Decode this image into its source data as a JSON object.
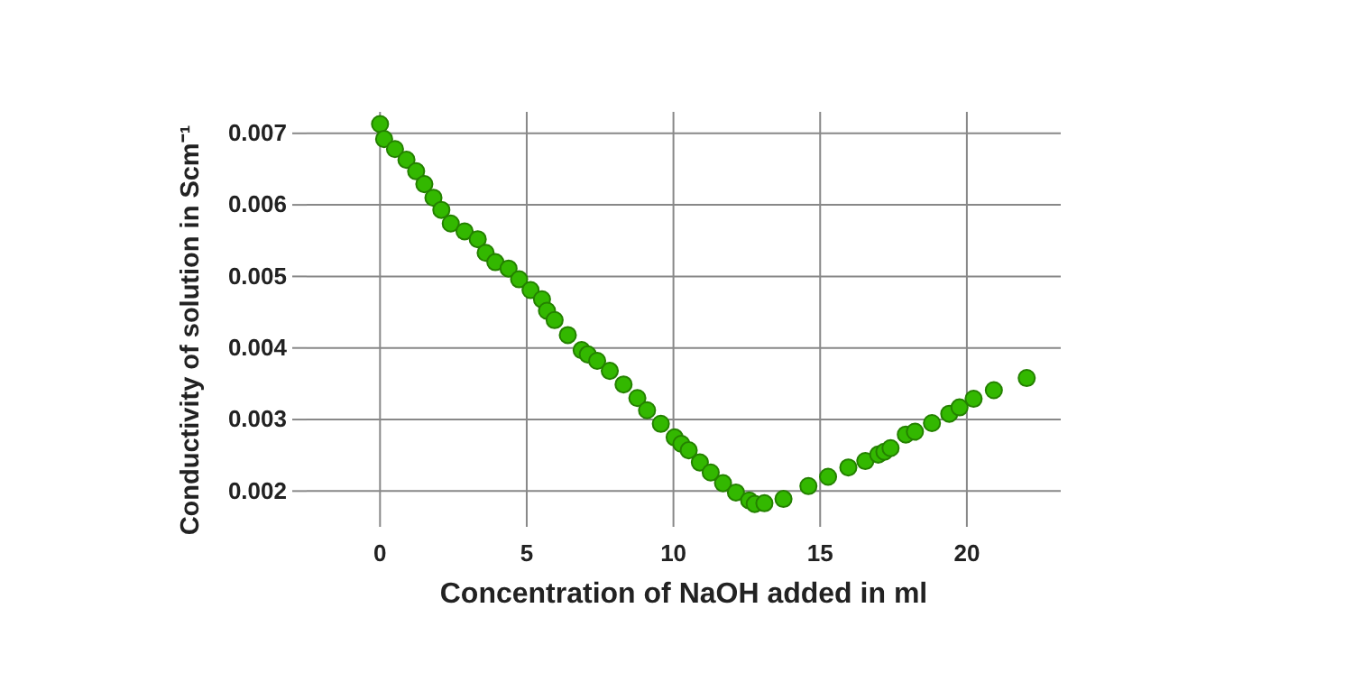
{
  "chart_data": {
    "type": "scatter",
    "xlabel": "Concentration of NaOH added in ml",
    "ylabel": "Conductivity of solution in Scm⁻¹",
    "x": [
      0,
      0.14,
      0.51,
      0.9,
      1.23,
      1.51,
      1.82,
      2.09,
      2.41,
      2.88,
      3.33,
      3.6,
      3.93,
      4.38,
      4.74,
      5.13,
      5.52,
      5.69,
      5.95,
      6.4,
      6.87,
      7.08,
      7.4,
      7.83,
      8.3,
      8.77,
      9.1,
      9.57,
      10.04,
      10.27,
      10.52,
      10.9,
      11.27,
      11.69,
      12.13,
      12.58,
      12.77,
      13.1,
      13.75,
      14.6,
      15.27,
      15.96,
      16.54,
      16.98,
      17.19,
      17.4,
      17.92,
      18.23,
      18.81,
      19.4,
      19.75,
      20.23,
      20.92,
      22.04
    ],
    "series": [
      {
        "color": "#33b800",
        "values": [
          0.00713,
          0.00692,
          0.00678,
          0.00663,
          0.00647,
          0.00629,
          0.0061,
          0.00593,
          0.00574,
          0.00563,
          0.00552,
          0.00533,
          0.0052,
          0.00511,
          0.00496,
          0.00481,
          0.00468,
          0.00452,
          0.00439,
          0.00418,
          0.00397,
          0.00391,
          0.00382,
          0.00368,
          0.00349,
          0.0033,
          0.00313,
          0.00294,
          0.00275,
          0.00266,
          0.00257,
          0.0024,
          0.00226,
          0.00211,
          0.00198,
          0.00187,
          0.00182,
          0.00183,
          0.00189,
          0.00207,
          0.0022,
          0.00233,
          0.00242,
          0.00251,
          0.00255,
          0.0026,
          0.00279,
          0.00283,
          0.00295,
          0.00308,
          0.00317,
          0.00329,
          0.00341,
          0.00358
        ]
      }
    ],
    "xlim": [
      -2.5,
      23.2
    ],
    "ylim": [
      0.0015,
      0.0073
    ],
    "xticks": [
      0,
      5,
      10,
      15,
      20
    ],
    "yticks": [
      0.002,
      0.003,
      0.004,
      0.005,
      0.006,
      0.007
    ],
    "grid": true,
    "marker": "circle"
  }
}
